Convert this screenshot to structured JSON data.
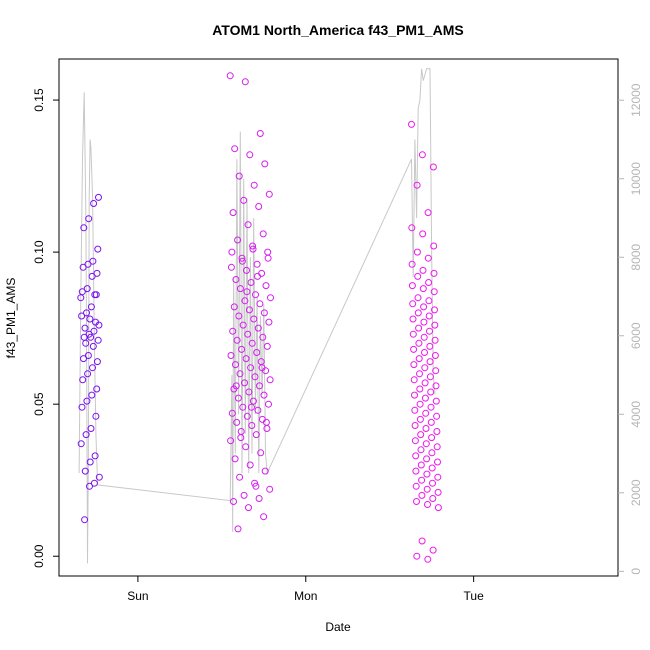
{
  "chart_data": {
    "type": "scatter",
    "title": "ATOM1 North_America f43_PM1_AMS",
    "xlabel": "Date",
    "ylabel": "f43_PM1_AMS",
    "x_tick_labels": [
      "Sun",
      "Mon",
      "Tue"
    ],
    "x_tick_days": [
      0,
      1,
      2
    ],
    "xlim_days": [
      -0.47,
      2.86
    ],
    "ylim": [
      -0.0065,
      0.1635
    ],
    "y_ticks": [
      0.0,
      0.05,
      0.1,
      0.15
    ],
    "y_tick_labels": [
      "0.00",
      "0.05",
      "0.10",
      "0.15"
    ],
    "y2_label": "",
    "y2lim": [
      -120,
      13050
    ],
    "y2_ticks": [
      0,
      2000,
      4000,
      6000,
      8000,
      10000,
      12000
    ],
    "y2_tick_labels": [
      "0",
      "2000",
      "4000",
      "6000",
      "8000",
      "10000",
      "12000"
    ],
    "colors": {
      "cluster1": "#7b10f0",
      "cluster2": "#d51ef0",
      "cluster3": "#ee18ee",
      "line": "#c8c8c8",
      "axis": "#000000",
      "right_axis": "#b5b5b5"
    },
    "series": [
      {
        "kind": "points",
        "color": "cluster1",
        "x_range_days": [
          -0.34,
          -0.23
        ],
        "y": [
          0.085,
          0.086,
          0.078,
          0.075,
          0.076,
          0.074,
          0.073,
          0.072,
          0.071,
          0.069,
          0.066,
          0.065,
          0.064,
          0.062,
          0.06,
          0.058,
          0.055,
          0.053,
          0.051,
          0.049,
          0.046,
          0.042,
          0.04,
          0.037,
          0.033,
          0.031,
          0.028,
          0.026,
          0.024,
          0.023,
          0.012,
          0.118,
          0.116,
          0.111,
          0.108,
          0.101,
          0.097,
          0.096,
          0.095,
          0.093,
          0.092,
          0.088,
          0.087,
          0.086,
          0.082,
          0.08,
          0.079,
          0.077,
          0.072,
          0.07
        ]
      },
      {
        "kind": "points",
        "color": "cluster2",
        "x_range_days": [
          0.55,
          0.79
        ],
        "y": [
          0.158,
          0.156,
          0.139,
          0.134,
          0.132,
          0.129,
          0.125,
          0.122,
          0.119,
          0.117,
          0.115,
          0.113,
          0.109,
          0.106,
          0.104,
          0.102,
          0.1,
          0.098,
          0.096,
          0.095,
          0.094,
          0.093,
          0.091,
          0.09,
          0.089,
          0.088,
          0.086,
          0.085,
          0.084,
          0.083,
          0.082,
          0.081,
          0.08,
          0.079,
          0.078,
          0.077,
          0.076,
          0.075,
          0.074,
          0.073,
          0.072,
          0.071,
          0.07,
          0.069,
          0.068,
          0.067,
          0.066,
          0.065,
          0.064,
          0.063,
          0.062,
          0.061,
          0.06,
          0.059,
          0.058,
          0.057,
          0.056,
          0.055,
          0.054,
          0.053,
          0.052,
          0.051,
          0.05,
          0.049,
          0.048,
          0.047,
          0.046,
          0.045,
          0.044,
          0.043,
          0.042,
          0.041,
          0.04,
          0.038,
          0.036,
          0.034,
          0.032,
          0.03,
          0.028,
          0.026,
          0.024,
          0.022,
          0.02,
          0.019,
          0.018,
          0.016,
          0.013,
          0.009,
          0.101,
          0.098,
          0.097,
          0.092,
          0.1,
          0.087,
          0.062,
          0.056,
          0.049,
          0.044,
          0.039,
          0.023
        ]
      },
      {
        "kind": "points",
        "color": "cluster3",
        "x_range_days": [
          1.63,
          1.79
        ],
        "y": [
          0.142,
          0.132,
          0.128,
          0.122,
          0.113,
          0.108,
          0.106,
          0.102,
          0.1,
          0.098,
          0.096,
          0.094,
          0.093,
          0.092,
          0.09,
          0.089,
          0.088,
          0.087,
          0.085,
          0.084,
          0.083,
          0.082,
          0.081,
          0.08,
          0.079,
          0.078,
          0.077,
          0.076,
          0.075,
          0.074,
          0.073,
          0.072,
          0.071,
          0.07,
          0.069,
          0.068,
          0.067,
          0.066,
          0.065,
          0.064,
          0.063,
          0.062,
          0.061,
          0.06,
          0.059,
          0.058,
          0.057,
          0.056,
          0.055,
          0.054,
          0.053,
          0.052,
          0.051,
          0.05,
          0.049,
          0.048,
          0.047,
          0.046,
          0.045,
          0.044,
          0.043,
          0.042,
          0.041,
          0.04,
          0.039,
          0.038,
          0.037,
          0.036,
          0.035,
          0.034,
          0.033,
          0.032,
          0.031,
          0.03,
          0.029,
          0.028,
          0.027,
          0.026,
          0.025,
          0.024,
          0.023,
          0.022,
          0.021,
          0.02,
          0.019,
          0.018,
          0.017,
          0.016,
          0.005,
          0.002,
          0.0,
          -0.001
        ]
      },
      {
        "kind": "line",
        "color": "line",
        "axis": "right",
        "points_days": [
          [
            -0.35,
            2500
          ],
          [
            -0.34,
            7000
          ],
          [
            -0.33,
            10500
          ],
          [
            -0.32,
            12200
          ],
          [
            -0.31,
            9000
          ],
          [
            -0.305,
            5000
          ],
          [
            -0.3,
            200
          ],
          [
            -0.295,
            3000
          ],
          [
            -0.29,
            9500
          ],
          [
            -0.285,
            11000
          ],
          [
            -0.28,
            10800
          ],
          [
            -0.275,
            10200
          ],
          [
            -0.27,
            9500
          ],
          [
            -0.26,
            6000
          ],
          [
            -0.25,
            3500
          ],
          [
            -0.24,
            2200
          ],
          [
            0.55,
            1800
          ],
          [
            0.56,
            5000
          ],
          [
            0.565,
            1000
          ],
          [
            0.57,
            7500
          ],
          [
            0.58,
            3000
          ],
          [
            0.59,
            10500
          ],
          [
            0.6,
            4000
          ],
          [
            0.61,
            11200
          ],
          [
            0.62,
            2500
          ],
          [
            0.63,
            10000
          ],
          [
            0.64,
            3500
          ],
          [
            0.65,
            9500
          ],
          [
            0.66,
            2500
          ],
          [
            0.67,
            8000
          ],
          [
            0.68,
            3000
          ],
          [
            0.69,
            9000
          ],
          [
            0.7,
            4000
          ],
          [
            0.71,
            7000
          ],
          [
            0.72,
            2500
          ],
          [
            0.73,
            6500
          ],
          [
            0.74,
            4500
          ],
          [
            0.75,
            6800
          ],
          [
            0.76,
            3000
          ],
          [
            0.77,
            2500
          ],
          [
            1.63,
            10500
          ],
          [
            1.64,
            7500
          ],
          [
            1.65,
            11000
          ],
          [
            1.66,
            9000
          ],
          [
            1.67,
            11800
          ],
          [
            1.68,
            12000
          ],
          [
            1.69,
            12800
          ],
          [
            1.7,
            12500
          ],
          [
            1.72,
            12800
          ],
          [
            1.74,
            12800
          ],
          [
            1.75,
            8000
          ],
          [
            1.76,
            5000
          ],
          [
            1.77,
            4500
          ]
        ]
      }
    ]
  }
}
